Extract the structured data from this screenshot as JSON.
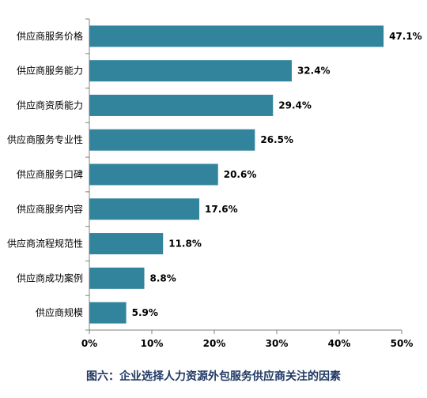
{
  "chart_data": {
    "type": "bar",
    "orientation": "horizontal",
    "categories": [
      "供应商服务价格",
      "供应商服务能力",
      "供应商资质能力",
      "供应商服务专业性",
      "供应商服务口碑",
      "供应商服务内容",
      "供应商流程规范性",
      "供应商成功案例",
      "供应商规模"
    ],
    "values": [
      47.1,
      32.4,
      29.4,
      26.5,
      20.6,
      17.6,
      11.8,
      8.8,
      5.9
    ],
    "value_labels": [
      "47.1%",
      "32.4%",
      "29.4%",
      "26.5%",
      "20.6%",
      "17.6%",
      "11.8%",
      "8.8%",
      "5.9%"
    ],
    "xlim": [
      0,
      50
    ],
    "x_ticks": [
      0,
      10,
      20,
      30,
      40,
      50
    ],
    "x_tick_labels": [
      "0%",
      "10%",
      "20%",
      "30%",
      "40%",
      "50%"
    ],
    "grid": false,
    "bar_color": "#31849b",
    "title": "图六：企业选择人力资源外包服务供应商关注的因素",
    "xlabel": "",
    "ylabel": ""
  },
  "caption_color": "#1f3864"
}
